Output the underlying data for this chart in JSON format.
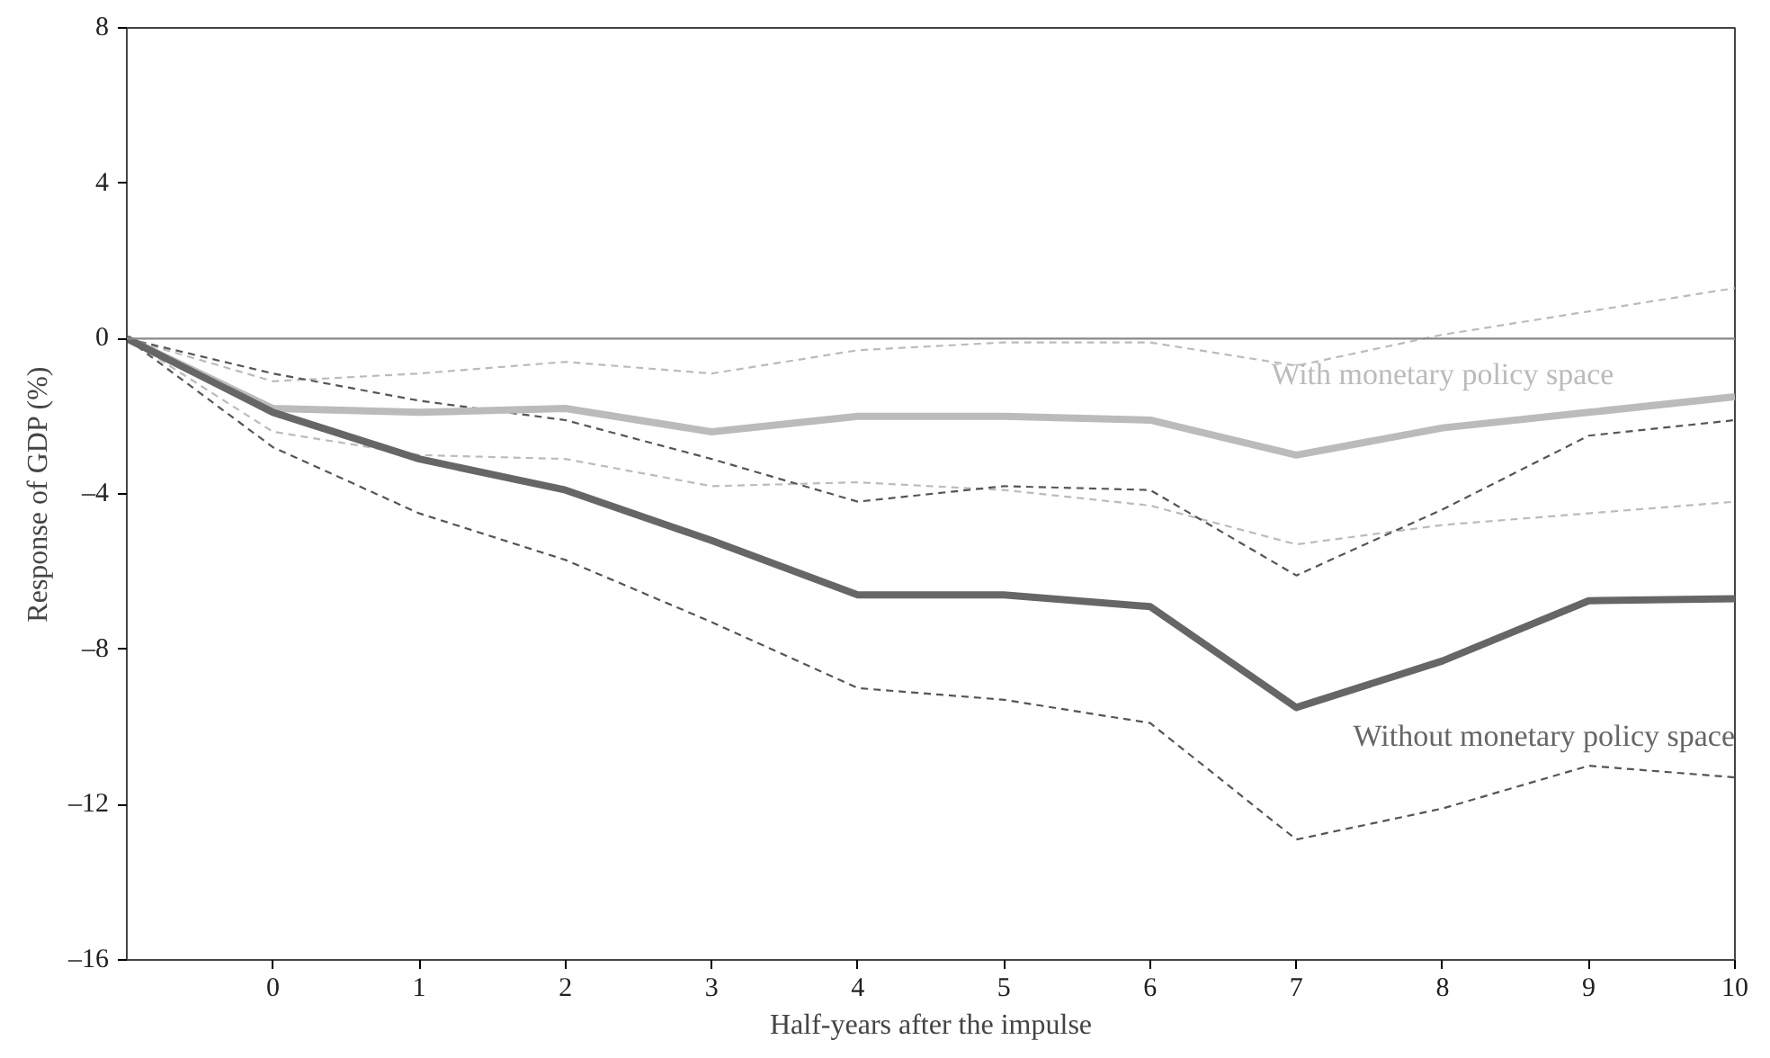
{
  "chart_data": {
    "type": "line",
    "xlabel": "Half-years after the impulse",
    "ylabel": "Response of GDP (%)",
    "x": [
      -1,
      0,
      1,
      2,
      3,
      4,
      5,
      6,
      7,
      8,
      9,
      10
    ],
    "xlim": [
      -1,
      10
    ],
    "xticks": [
      0,
      1,
      2,
      3,
      4,
      5,
      6,
      7,
      8,
      9,
      10
    ],
    "ylim": [
      -16,
      8
    ],
    "yticks": [
      {
        "value": -16,
        "label": "–16"
      },
      {
        "value": -12,
        "label": "–12"
      },
      {
        "value": -8,
        "label": "–8"
      },
      {
        "value": -4,
        "label": "–4"
      },
      0,
      4,
      8
    ],
    "grid": false,
    "ref_lines": [
      {
        "axis": "y",
        "value": 0,
        "color": "#888888"
      }
    ],
    "series": [
      {
        "name": "With monetary policy space",
        "color": "#bbbbbb",
        "line_style": "solid",
        "values": [
          0,
          -1.8,
          -1.9,
          -1.8,
          -2.4,
          -2.0,
          -2.0,
          -2.1,
          -3.0,
          -2.3,
          -1.9,
          -1.5
        ]
      },
      {
        "name": "Without monetary policy space",
        "color": "#666666",
        "line_style": "solid",
        "values": [
          0,
          -1.9,
          -3.1,
          -3.9,
          -5.2,
          -6.6,
          -6.6,
          -6.9,
          -9.5,
          -8.3,
          -6.75,
          -6.7
        ]
      },
      {
        "color": "#bbbbbb",
        "line_style": "dashed",
        "values": [
          0,
          -1.1,
          -0.9,
          -0.6,
          -0.9,
          -0.3,
          -0.1,
          -0.1,
          -0.7,
          0.1,
          0.7,
          1.3
        ]
      },
      {
        "color": "#bbbbbb",
        "line_style": "dashed",
        "values": [
          0,
          -2.4,
          -3.0,
          -3.1,
          -3.8,
          -3.7,
          -3.9,
          -4.3,
          -5.3,
          -4.8,
          -4.5,
          -4.2
        ]
      },
      {
        "color": "#555555",
        "line_style": "dashed",
        "values": [
          0,
          -0.9,
          -1.6,
          -2.1,
          -3.1,
          -4.2,
          -3.8,
          -3.9,
          -6.1,
          -4.4,
          -2.5,
          -2.1
        ]
      },
      {
        "color": "#555555",
        "line_style": "dashed",
        "values": [
          0,
          -2.8,
          -4.5,
          -5.7,
          -7.3,
          -9.0,
          -9.3,
          -9.9,
          -12.9,
          -12.1,
          -11.0,
          -11.3
        ]
      }
    ]
  }
}
